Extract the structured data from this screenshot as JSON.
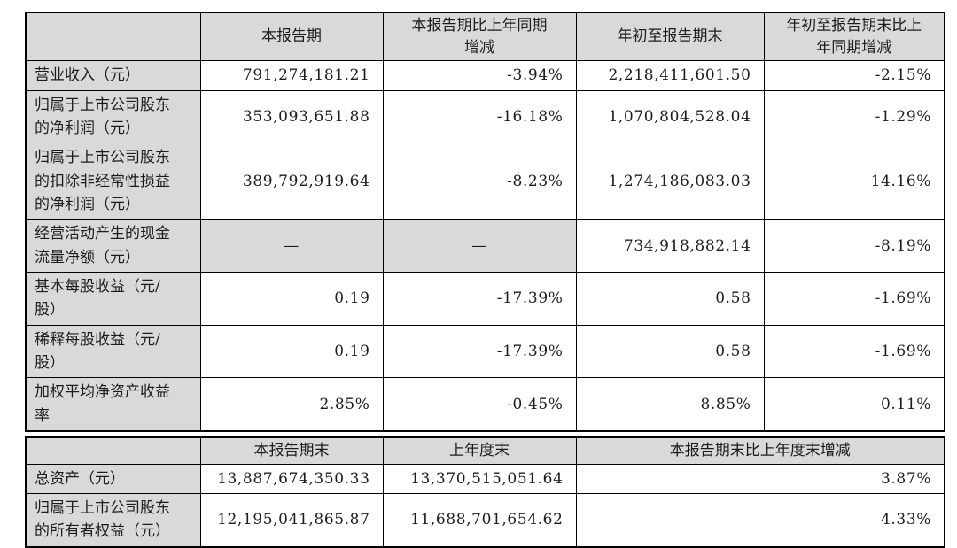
{
  "colors": {
    "header_bg": "#d9d9d9",
    "label_bg": "#d9d9d9",
    "cell_bg": "#ffffff",
    "border": "#000000",
    "text": "#1c1c1c"
  },
  "s1": {
    "headers": {
      "corner": "",
      "current_period": "本报告期",
      "current_period_yoy": "本报告期比上年同期\n增减",
      "ytd": "年初至报告期末",
      "ytd_yoy": "年初至报告期末比上\n年同期增减"
    },
    "rows": [
      {
        "label": "营业收入（元）",
        "values": [
          "791,274,181.21",
          "-3.94%",
          "2,218,411,601.50",
          "-2.15%"
        ]
      },
      {
        "label": "归属于上市公司股东的净利润（元）",
        "values": [
          "353,093,651.88",
          "-16.18%",
          "1,070,804,528.04",
          "-1.29%"
        ]
      },
      {
        "label": "归属于上市公司股东的扣除非经常性损益的净利润（元）",
        "values": [
          "389,792,919.64",
          "-8.23%",
          "1,274,186,083.03",
          "14.16%"
        ]
      },
      {
        "label": "经营活动产生的现金流量净额（元）",
        "values": [
          "—",
          "—",
          "734,918,882.14",
          "-8.19%"
        ]
      },
      {
        "label": "基本每股收益（元/股）",
        "values": [
          "0.19",
          "-17.39%",
          "0.58",
          "-1.69%"
        ]
      },
      {
        "label": "稀释每股收益（元/股）",
        "values": [
          "0.19",
          "-17.39%",
          "0.58",
          "-1.69%"
        ]
      },
      {
        "label": "加权平均净资产收益率",
        "values": [
          "2.85%",
          "-0.45%",
          "8.85%",
          "0.11%"
        ]
      }
    ]
  },
  "s2": {
    "headers": {
      "corner": "",
      "period_end": "本报告期末",
      "prev_year_end": "上年度末",
      "period_end_vs_prev": "本报告期末比上年度末增减"
    },
    "rows": [
      {
        "label": "总资产（元）",
        "values": [
          "13,887,674,350.33",
          "13,370,515,051.64",
          "3.87%"
        ]
      },
      {
        "label": "归属于上市公司股东的所有者权益（元）",
        "values": [
          "12,195,041,865.87",
          "11,688,701,654.62",
          "4.33%"
        ]
      }
    ]
  }
}
